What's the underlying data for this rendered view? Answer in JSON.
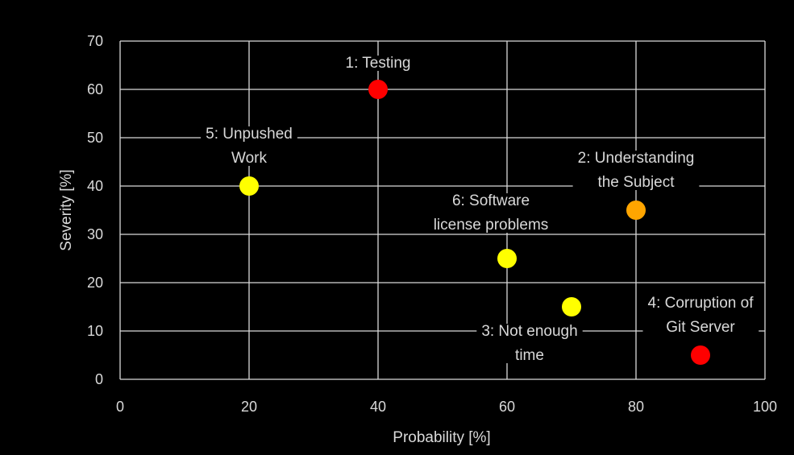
{
  "chart_data": {
    "type": "scatter",
    "xlabel": "Probability [%]",
    "ylabel": "Severity [%]",
    "xlim": [
      0,
      100
    ],
    "ylim": [
      0,
      70
    ],
    "xticks": [
      0,
      20,
      40,
      60,
      80,
      100
    ],
    "yticks": [
      0,
      10,
      20,
      30,
      40,
      50,
      60,
      70
    ],
    "grid": true,
    "points": [
      {
        "id": 1,
        "x": 40,
        "y": 60,
        "color": "#ff0000",
        "label": [
          "1: Testing"
        ]
      },
      {
        "id": 2,
        "x": 80,
        "y": 35,
        "color": "#ffa500",
        "label": [
          "2: Understanding",
          "the Subject"
        ]
      },
      {
        "id": 3,
        "x": 70,
        "y": 15,
        "color": "#ffff00",
        "label": [
          "3: Not enough",
          "time"
        ]
      },
      {
        "id": 4,
        "x": 90,
        "y": 5,
        "color": "#ff0000",
        "label": [
          "4: Corruption of",
          "Git Server"
        ]
      },
      {
        "id": 5,
        "x": 20,
        "y": 40,
        "color": "#ffff00",
        "label": [
          "5: Unpushed",
          "Work"
        ]
      },
      {
        "id": 6,
        "x": 60,
        "y": 25,
        "color": "#ffff00",
        "label": [
          "6: Software",
          "license problems"
        ]
      }
    ]
  }
}
